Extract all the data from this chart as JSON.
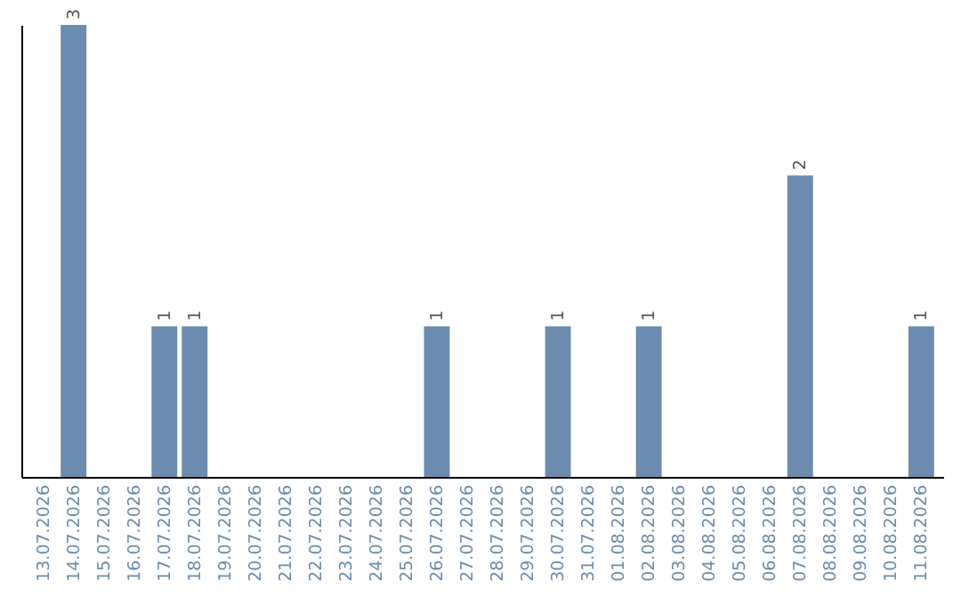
{
  "chart_data": {
    "type": "bar",
    "categories": [
      "13.07.2026",
      "14.07.2026",
      "15.07.2026",
      "16.07.2026",
      "17.07.2026",
      "18.07.2026",
      "19.07.2026",
      "20.07.2026",
      "21.07.2026",
      "22.07.2026",
      "23.07.2026",
      "24.07.2026",
      "25.07.2026",
      "26.07.2026",
      "27.07.2026",
      "28.07.2026",
      "29.07.2026",
      "30.07.2026",
      "31.07.2026",
      "01.08.2026",
      "02.08.2026",
      "03.08.2026",
      "04.08.2026",
      "05.08.2026",
      "06.08.2026",
      "07.08.2026",
      "08.08.2026",
      "09.08.2026",
      "10.08.2026",
      "11.08.2026"
    ],
    "values": [
      0,
      3,
      0,
      0,
      1,
      1,
      0,
      0,
      0,
      0,
      0,
      0,
      0,
      1,
      0,
      0,
      0,
      1,
      0,
      0,
      1,
      0,
      0,
      0,
      0,
      2,
      0,
      0,
      0,
      1
    ],
    "value_labels": [
      null,
      "3",
      null,
      null,
      "1",
      "1",
      null,
      null,
      null,
      null,
      null,
      null,
      null,
      "1",
      null,
      null,
      null,
      "1",
      null,
      null,
      "1",
      null,
      null,
      null,
      null,
      "2",
      null,
      null,
      null,
      "1"
    ],
    "color": "#6b8cae",
    "grid": false
  }
}
